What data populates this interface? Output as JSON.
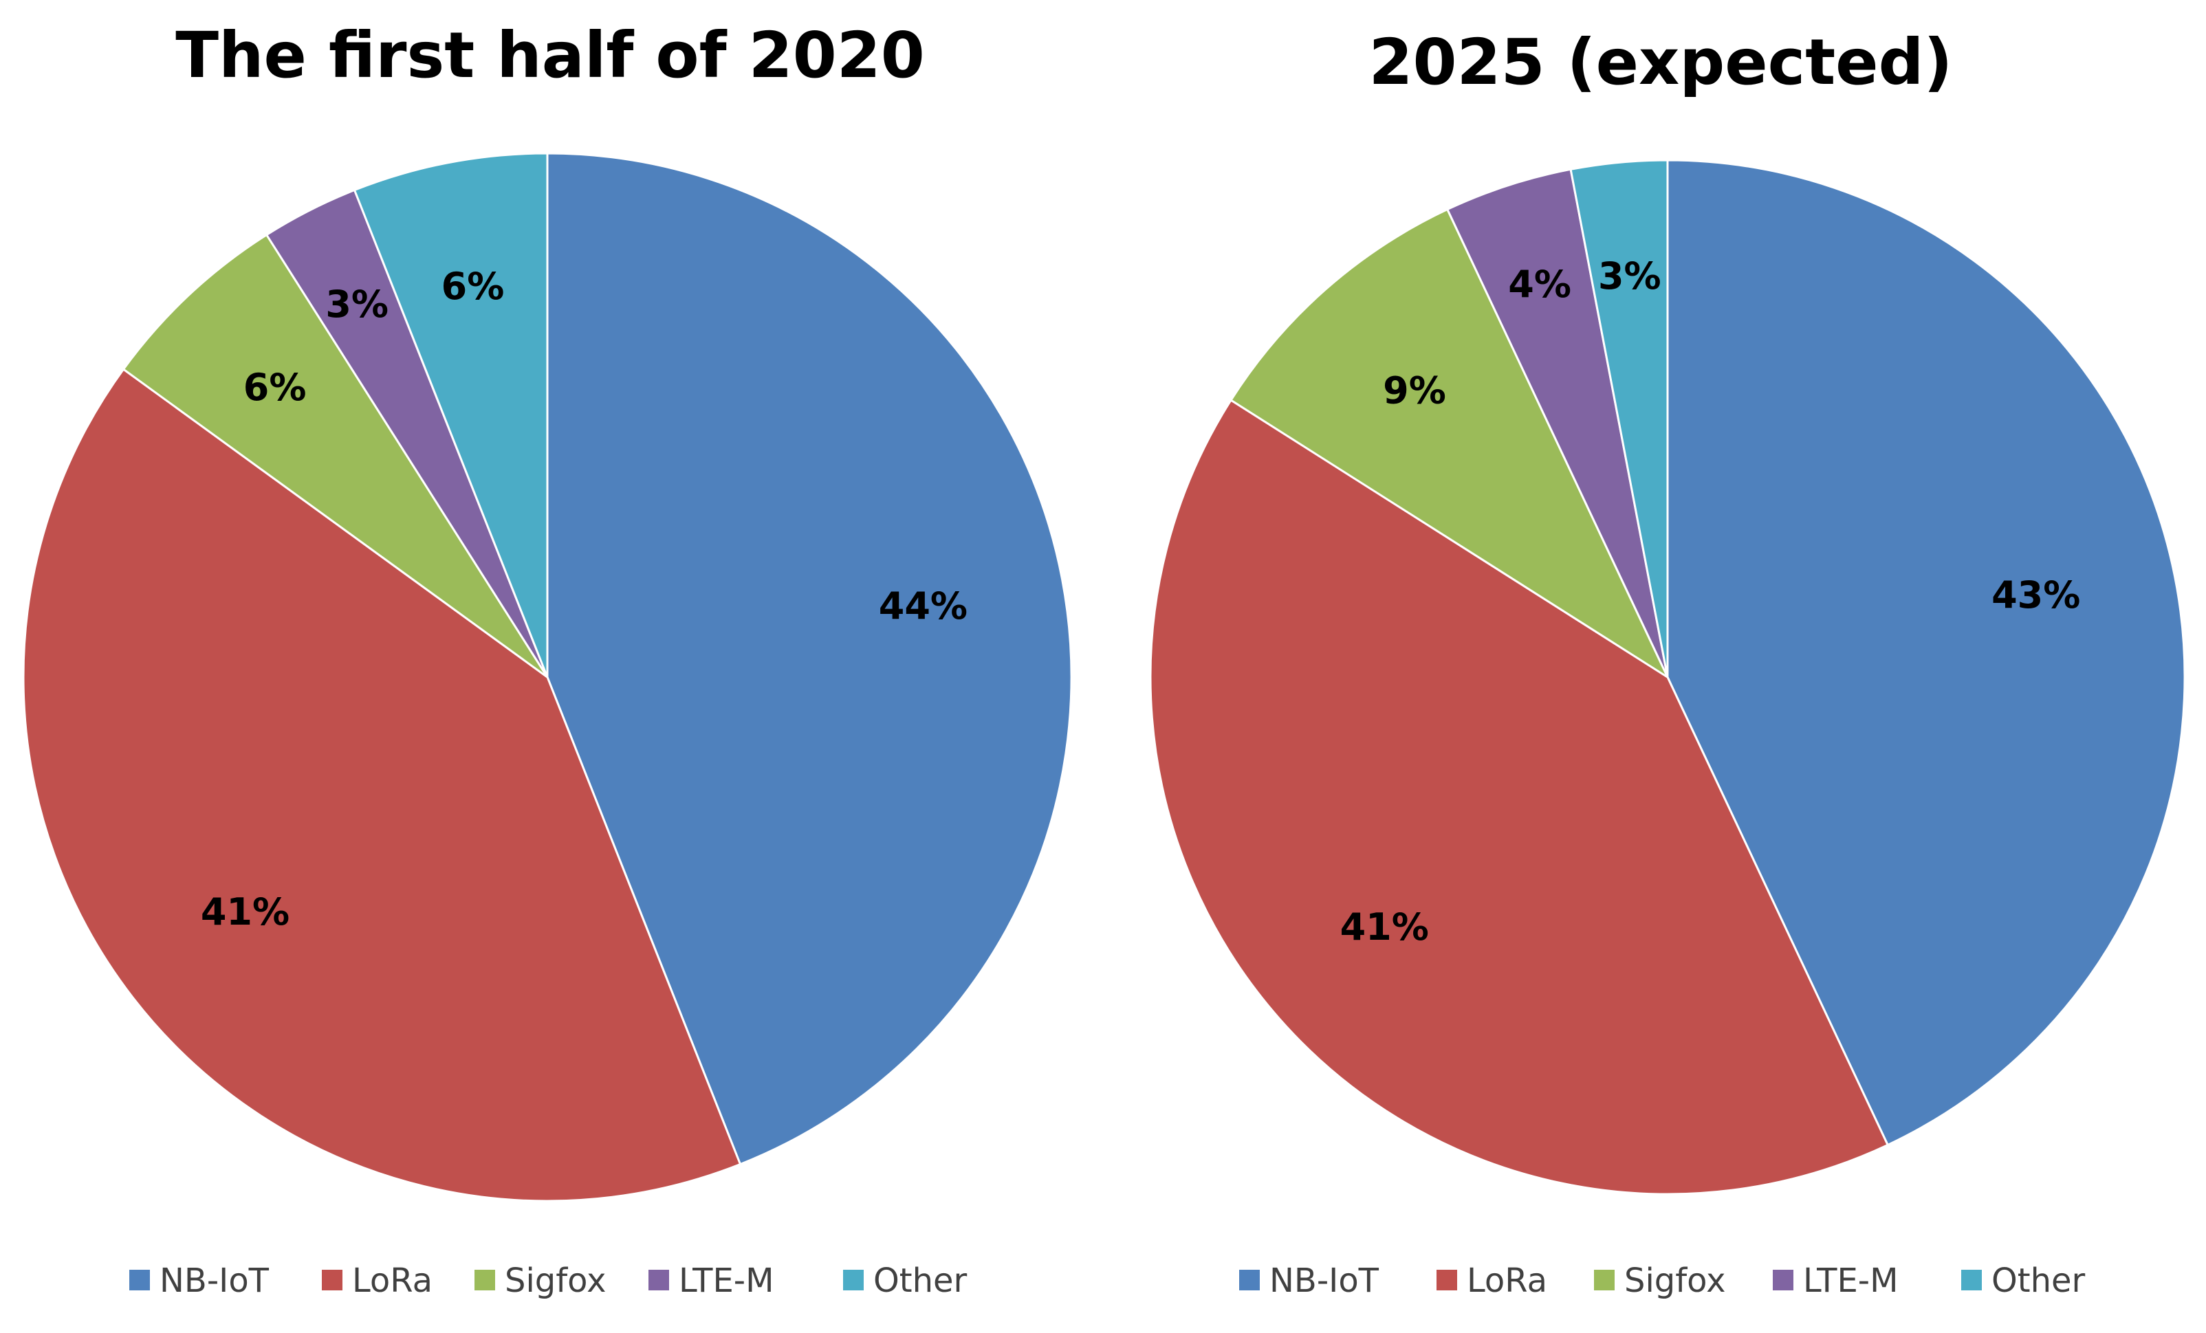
{
  "chart_data": [
    {
      "type": "pie",
      "title": "The first half of 2020",
      "start_angle_deg": 0,
      "direction": "clockwise",
      "slices": [
        {
          "name": "NB-IoT",
          "value": 44,
          "label": "44%",
          "color": "#4F81BD"
        },
        {
          "name": "LoRa",
          "value": 41,
          "label": "41%",
          "color": "#C0504D"
        },
        {
          "name": "Sigfox",
          "value": 6,
          "label": "6%",
          "color": "#9BBB59"
        },
        {
          "name": "LTE-M",
          "value": 3,
          "label": "3%",
          "color": "#8064A2"
        },
        {
          "name": "Other",
          "value": 6,
          "label": "6%",
          "color": "#4BACC6"
        }
      ],
      "legend": [
        "NB-IoT",
        "LoRa",
        "Sigfox",
        "LTE-M",
        "Other"
      ],
      "legend_position": "bottom"
    },
    {
      "type": "pie",
      "title": "2025 (expected)",
      "start_angle_deg": 0,
      "direction": "clockwise",
      "slices": [
        {
          "name": "NB-IoT",
          "value": 43,
          "label": "43%",
          "color": "#4F81BD"
        },
        {
          "name": "LoRa",
          "value": 41,
          "label": "41%",
          "color": "#C0504D"
        },
        {
          "name": "Sigfox",
          "value": 9,
          "label": "9%",
          "color": "#9BBB59"
        },
        {
          "name": "LTE-M",
          "value": 4,
          "label": "4%",
          "color": "#8064A2"
        },
        {
          "name": "Other",
          "value": 3,
          "label": "3%",
          "color": "#4BACC6"
        }
      ],
      "legend": [
        "NB-IoT",
        "LoRa",
        "Sigfox",
        "LTE-M",
        "Other"
      ],
      "legend_position": "bottom"
    }
  ]
}
